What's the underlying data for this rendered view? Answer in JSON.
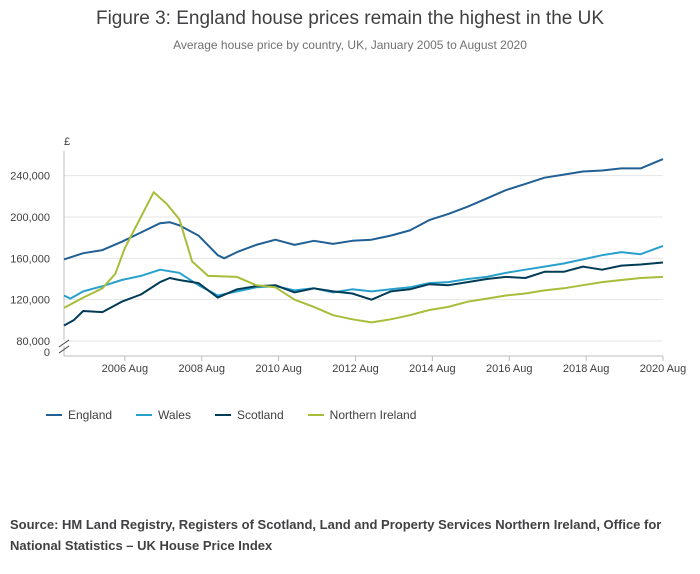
{
  "title": "Figure 3: England house prices remain the highest in the UK",
  "subtitle": "Average house price by country, UK, January 2005 to August 2020",
  "source": "Source: HM Land Registry, Registers of Scotland, Land and Property Services Northern Ireland, Office for National Statistics – UK House Price Index",
  "colors": {
    "England": "#206095",
    "Wales": "#27a0cc",
    "Scotland": "#003c57",
    "Northern Ireland": "#a8bd3a"
  },
  "chart_data": {
    "type": "line",
    "ylabel": "£",
    "y_ticks": [
      "0",
      "80,000",
      "120,000",
      "160,000",
      "200,000",
      "240,000"
    ],
    "y_tick_values": [
      0,
      80000,
      120000,
      160000,
      200000,
      240000
    ],
    "axis_break": true,
    "x_ticks": [
      "2006 Aug",
      "2008 Aug",
      "2010 Aug",
      "2012 Aug",
      "2014 Aug",
      "2016 Aug",
      "2018 Aug",
      "2020 Aug"
    ],
    "x_tick_values": [
      "2006-08",
      "2008-08",
      "2010-08",
      "2012-08",
      "2014-08",
      "2016-08",
      "2018-08",
      "2020-08"
    ],
    "xlim": [
      "2005-01",
      "2020-08"
    ],
    "ylim": [
      80000,
      260000
    ],
    "grid": true,
    "legend_position": "bottom-left",
    "series": [
      {
        "name": "England",
        "points": [
          [
            "2005-01",
            159000
          ],
          [
            "2005-07",
            165000
          ],
          [
            "2006-01",
            168000
          ],
          [
            "2006-07",
            176000
          ],
          [
            "2007-01",
            185000
          ],
          [
            "2007-07",
            194000
          ],
          [
            "2007-10",
            195000
          ],
          [
            "2008-01",
            192000
          ],
          [
            "2008-07",
            182000
          ],
          [
            "2009-01",
            163000
          ],
          [
            "2009-03",
            160000
          ],
          [
            "2009-07",
            166000
          ],
          [
            "2010-01",
            173000
          ],
          [
            "2010-07",
            178000
          ],
          [
            "2011-01",
            173000
          ],
          [
            "2011-07",
            177000
          ],
          [
            "2012-01",
            174000
          ],
          [
            "2012-07",
            177000
          ],
          [
            "2013-01",
            178000
          ],
          [
            "2013-07",
            182000
          ],
          [
            "2014-01",
            187000
          ],
          [
            "2014-07",
            197000
          ],
          [
            "2015-01",
            203000
          ],
          [
            "2015-07",
            210000
          ],
          [
            "2016-01",
            218000
          ],
          [
            "2016-07",
            226000
          ],
          [
            "2017-01",
            232000
          ],
          [
            "2017-07",
            238000
          ],
          [
            "2018-01",
            241000
          ],
          [
            "2018-07",
            244000
          ],
          [
            "2019-01",
            245000
          ],
          [
            "2019-07",
            247000
          ],
          [
            "2020-01",
            247000
          ],
          [
            "2020-08",
            256000
          ]
        ]
      },
      {
        "name": "Wales",
        "points": [
          [
            "2005-01",
            124000
          ],
          [
            "2005-03",
            121000
          ],
          [
            "2005-07",
            128000
          ],
          [
            "2006-01",
            133000
          ],
          [
            "2006-07",
            139000
          ],
          [
            "2007-01",
            143000
          ],
          [
            "2007-07",
            149000
          ],
          [
            "2008-01",
            146000
          ],
          [
            "2008-07",
            134000
          ],
          [
            "2009-01",
            124000
          ],
          [
            "2009-07",
            128000
          ],
          [
            "2010-01",
            132000
          ],
          [
            "2010-07",
            133000
          ],
          [
            "2011-01",
            129000
          ],
          [
            "2011-07",
            131000
          ],
          [
            "2012-01",
            127000
          ],
          [
            "2012-07",
            130000
          ],
          [
            "2013-01",
            128000
          ],
          [
            "2013-07",
            130000
          ],
          [
            "2014-01",
            132000
          ],
          [
            "2014-07",
            136000
          ],
          [
            "2015-01",
            137000
          ],
          [
            "2015-07",
            140000
          ],
          [
            "2016-01",
            142000
          ],
          [
            "2016-07",
            146000
          ],
          [
            "2017-01",
            149000
          ],
          [
            "2017-07",
            152000
          ],
          [
            "2018-01",
            155000
          ],
          [
            "2018-07",
            159000
          ],
          [
            "2019-01",
            163000
          ],
          [
            "2019-07",
            166000
          ],
          [
            "2020-01",
            164000
          ],
          [
            "2020-08",
            172000
          ]
        ]
      },
      {
        "name": "Scotland",
        "points": [
          [
            "2005-01",
            95000
          ],
          [
            "2005-04",
            100000
          ],
          [
            "2005-07",
            109000
          ],
          [
            "2006-01",
            108000
          ],
          [
            "2006-07",
            118000
          ],
          [
            "2007-01",
            125000
          ],
          [
            "2007-07",
            137000
          ],
          [
            "2007-10",
            141000
          ],
          [
            "2008-01",
            139000
          ],
          [
            "2008-07",
            136000
          ],
          [
            "2009-01",
            122000
          ],
          [
            "2009-07",
            130000
          ],
          [
            "2010-01",
            133000
          ],
          [
            "2010-07",
            134000
          ],
          [
            "2011-01",
            127000
          ],
          [
            "2011-07",
            131000
          ],
          [
            "2012-01",
            128000
          ],
          [
            "2012-07",
            126000
          ],
          [
            "2013-01",
            120000
          ],
          [
            "2013-07",
            128000
          ],
          [
            "2014-01",
            130000
          ],
          [
            "2014-07",
            135000
          ],
          [
            "2015-01",
            134000
          ],
          [
            "2015-07",
            137000
          ],
          [
            "2016-01",
            140000
          ],
          [
            "2016-07",
            142000
          ],
          [
            "2017-01",
            141000
          ],
          [
            "2017-07",
            147000
          ],
          [
            "2018-01",
            147000
          ],
          [
            "2018-07",
            152000
          ],
          [
            "2019-01",
            149000
          ],
          [
            "2019-07",
            153000
          ],
          [
            "2020-01",
            154000
          ],
          [
            "2020-08",
            156000
          ]
        ]
      },
      {
        "name": "Northern Ireland",
        "points": [
          [
            "2005-01",
            112000
          ],
          [
            "2005-07",
            122000
          ],
          [
            "2006-01",
            131000
          ],
          [
            "2006-05",
            145000
          ],
          [
            "2006-08",
            170000
          ],
          [
            "2007-01",
            200000
          ],
          [
            "2007-05",
            224000
          ],
          [
            "2007-09",
            213000
          ],
          [
            "2008-01",
            198000
          ],
          [
            "2008-05",
            157000
          ],
          [
            "2008-10",
            143000
          ],
          [
            "2009-07",
            142000
          ],
          [
            "2010-01",
            134000
          ],
          [
            "2010-07",
            132000
          ],
          [
            "2011-01",
            120000
          ],
          [
            "2011-07",
            113000
          ],
          [
            "2012-01",
            105000
          ],
          [
            "2012-07",
            101000
          ],
          [
            "2013-01",
            98000
          ],
          [
            "2013-07",
            101000
          ],
          [
            "2014-01",
            105000
          ],
          [
            "2014-07",
            110000
          ],
          [
            "2015-01",
            113000
          ],
          [
            "2015-07",
            118000
          ],
          [
            "2016-01",
            121000
          ],
          [
            "2016-07",
            124000
          ],
          [
            "2017-01",
            126000
          ],
          [
            "2017-07",
            129000
          ],
          [
            "2018-01",
            131000
          ],
          [
            "2018-07",
            134000
          ],
          [
            "2019-01",
            137000
          ],
          [
            "2019-07",
            139000
          ],
          [
            "2020-01",
            141000
          ],
          [
            "2020-08",
            142000
          ]
        ]
      }
    ]
  }
}
